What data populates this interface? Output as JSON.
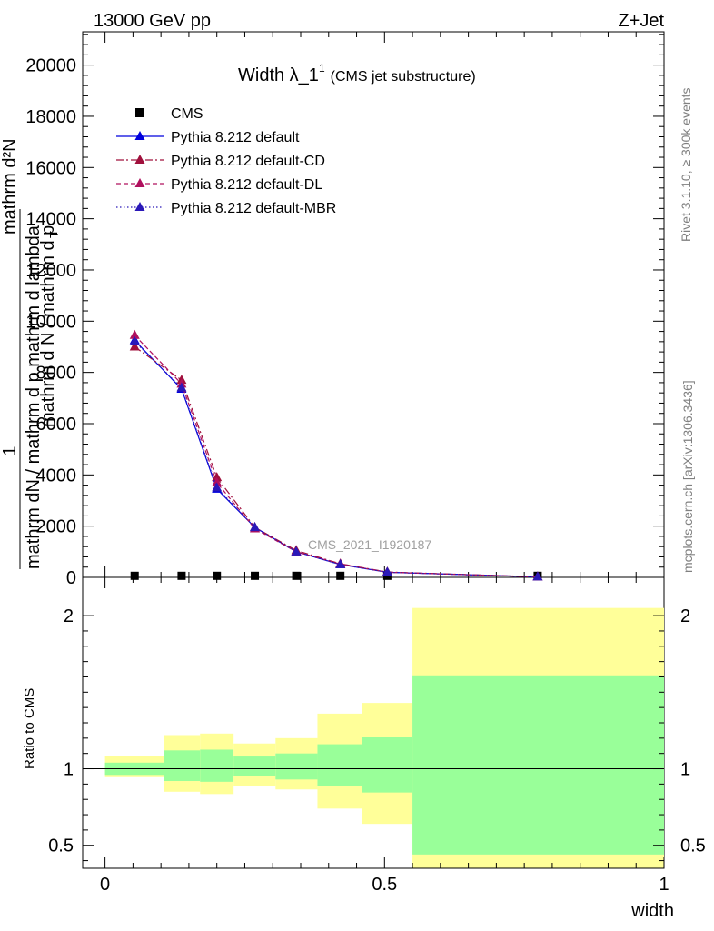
{
  "header": {
    "energy_label": "13000 GeV pp",
    "process_label": "Z+Jet",
    "plot_title_main": "Width λ_1",
    "plot_title_sup": "1",
    "plot_title_sub": "(CMS jet substructure)",
    "analysis_watermark": "CMS_2021_I1920187"
  },
  "side_labels": {
    "rivet_version": "Rivet 3.1.10, ≥ 300k events",
    "source": "mcplots.cern.ch [arXiv:1306.3436]"
  },
  "axis_labels": {
    "y_main_fraction_num": "1",
    "y_main_garbled_1": "mathrm d N / mathrm d p",
    "y_main_garbled_2": "mathrm dN / mathrm d p mathrm d lambda",
    "y_main_garbled_3": "mathrm d²N",
    "y_main_garbled_4": "T",
    "y_ratio": "Ratio to CMS",
    "x": "width"
  },
  "legend": [
    {
      "name": "CMS",
      "color": "#000000",
      "style": "marker-square"
    },
    {
      "name": "Pythia 8.212 default",
      "color": "#0000dd",
      "style": "solid"
    },
    {
      "name": "Pythia 8.212 default-CD",
      "color": "#a0103c",
      "style": "dashdot"
    },
    {
      "name": "Pythia 8.212 default-DL",
      "color": "#b0105e",
      "style": "dashed"
    },
    {
      "name": "Pythia 8.212 default-MBR",
      "color": "#2a18b8",
      "style": "dotted"
    }
  ],
  "chart_data": [
    {
      "type": "line",
      "panel": "main",
      "xlim": [
        -0.04,
        1.0
      ],
      "ylim": [
        0,
        21300
      ],
      "y_ticks": [
        0,
        2000,
        4000,
        6000,
        8000,
        10000,
        12000,
        14000,
        16000,
        18000,
        20000
      ],
      "y_tick_labels": [
        "0",
        "2000",
        "4000",
        "6000",
        "8000",
        "10000",
        "12000",
        "14000",
        "16000",
        "18000",
        "20000"
      ],
      "x_ticks": [
        0,
        0.5,
        1
      ],
      "x": [
        0.053,
        0.137,
        0.2,
        0.268,
        0.342,
        0.421,
        0.505,
        0.774
      ],
      "series": [
        {
          "name": "CMS",
          "values": [
            60,
            60,
            60,
            60,
            60,
            60,
            60,
            60
          ]
        },
        {
          "name": "Pythia 8.212 default",
          "values": [
            9250,
            7350,
            3450,
            1950,
            1000,
            500,
            200,
            20
          ]
        },
        {
          "name": "Pythia 8.212 default-CD",
          "values": [
            9000,
            7700,
            3900,
            1950,
            1050,
            530,
            210,
            20
          ]
        },
        {
          "name": "Pythia 8.212 default-DL",
          "values": [
            9450,
            7550,
            3700,
            1900,
            1000,
            520,
            200,
            20
          ]
        },
        {
          "name": "Pythia 8.212 default-MBR",
          "values": [
            9200,
            7400,
            3500,
            1950,
            1000,
            500,
            200,
            20
          ]
        }
      ]
    },
    {
      "type": "area",
      "panel": "ratio",
      "xlim": [
        -0.04,
        1.0
      ],
      "ylim": [
        0.35,
        2.25
      ],
      "y_ticks": [
        0.5,
        1,
        2
      ],
      "y_tick_labels": [
        "0.5",
        "1",
        "2"
      ],
      "x_ticks": [
        0,
        0.5,
        1
      ],
      "x_tick_labels": [
        "0",
        "0.5",
        "1"
      ],
      "bins": [
        {
          "x0": 0.0,
          "x1": 0.105,
          "green": [
            0.96,
            1.04
          ],
          "yellow": [
            0.945,
            1.085
          ]
        },
        {
          "x0": 0.105,
          "x1": 0.17,
          "green": [
            0.92,
            1.12
          ],
          "yellow": [
            0.85,
            1.22
          ]
        },
        {
          "x0": 0.17,
          "x1": 0.23,
          "green": [
            0.915,
            1.125
          ],
          "yellow": [
            0.835,
            1.23
          ]
        },
        {
          "x0": 0.23,
          "x1": 0.305,
          "green": [
            0.95,
            1.08
          ],
          "yellow": [
            0.89,
            1.165
          ]
        },
        {
          "x0": 0.305,
          "x1": 0.38,
          "green": [
            0.93,
            1.1
          ],
          "yellow": [
            0.865,
            1.2
          ]
        },
        {
          "x0": 0.38,
          "x1": 0.46,
          "green": [
            0.885,
            1.16
          ],
          "yellow": [
            0.74,
            1.36
          ]
        },
        {
          "x0": 0.46,
          "x1": 0.55,
          "green": [
            0.845,
            1.205
          ],
          "yellow": [
            0.64,
            1.43
          ]
        },
        {
          "x0": 0.55,
          "x1": 1.0,
          "green": [
            0.44,
            1.61
          ],
          "yellow": [
            0.35,
            2.05
          ]
        }
      ],
      "reference_line": 1
    }
  ]
}
